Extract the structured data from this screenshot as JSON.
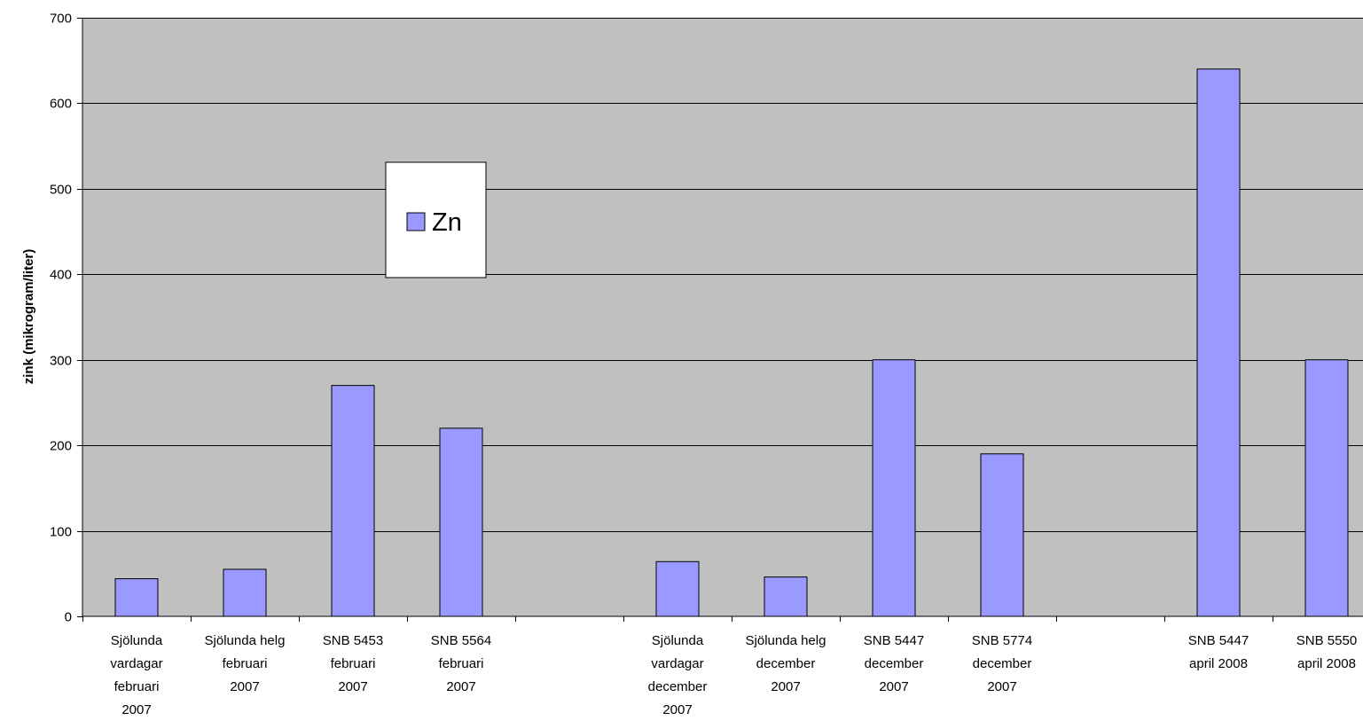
{
  "chart_data": {
    "type": "bar",
    "ylabel": "zink (mikrogram/liter)",
    "ylim": [
      0,
      700
    ],
    "yticks": [
      0,
      100,
      200,
      300,
      400,
      500,
      600,
      700
    ],
    "grid": true,
    "legend_position": "upper-left-inside",
    "categories": [
      [
        "Sjölunda",
        "vardagar",
        "februari",
        "2007"
      ],
      [
        "Sjölunda helg",
        "februari",
        "2007"
      ],
      [
        "SNB 5453",
        "februari",
        "2007"
      ],
      [
        "SNB 5564",
        "februari",
        "2007"
      ],
      [],
      [
        "Sjölunda",
        "vardagar",
        "december",
        "2007"
      ],
      [
        "Sjölunda helg",
        "december",
        "2007"
      ],
      [
        "SNB 5447",
        "december",
        "2007"
      ],
      [
        "SNB 5774",
        "december",
        "2007"
      ],
      [],
      [
        "SNB 5447",
        "april 2008"
      ],
      [
        "SNB 5550",
        "april 2008"
      ]
    ],
    "series": [
      {
        "name": "Zn",
        "color": "#9999ff",
        "values": [
          44,
          55,
          270,
          220,
          null,
          64,
          46,
          300,
          190,
          null,
          640,
          300
        ]
      }
    ],
    "colors": {
      "plot_background": "#c0c0c0",
      "bar": "#9999ff",
      "bar_border": "#000000"
    }
  }
}
